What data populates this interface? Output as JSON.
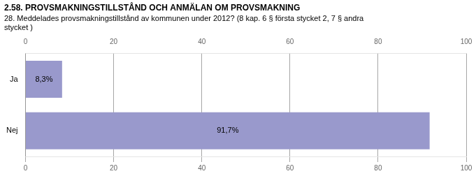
{
  "chart_data": {
    "type": "bar",
    "orientation": "horizontal",
    "title": "2.58. PROVSMAKNINGSTILLSTÅND OCH ANMÄLAN OM PROVSMAKNING",
    "subtitle": "28. Meddelades provsmakningstillstånd av kommunen under 2012? (8 kap. 6 § första stycket 2, 7 § andra\nstycket )",
    "categories": [
      "Ja",
      "Nej"
    ],
    "values": [
      8.3,
      91.7
    ],
    "value_labels": [
      "8,3%",
      "91,7%"
    ],
    "data_labels": true,
    "color": "#9999cc",
    "xlim": [
      0,
      100
    ],
    "xticks": [
      0,
      20,
      40,
      60,
      80,
      100
    ],
    "grid": true
  }
}
